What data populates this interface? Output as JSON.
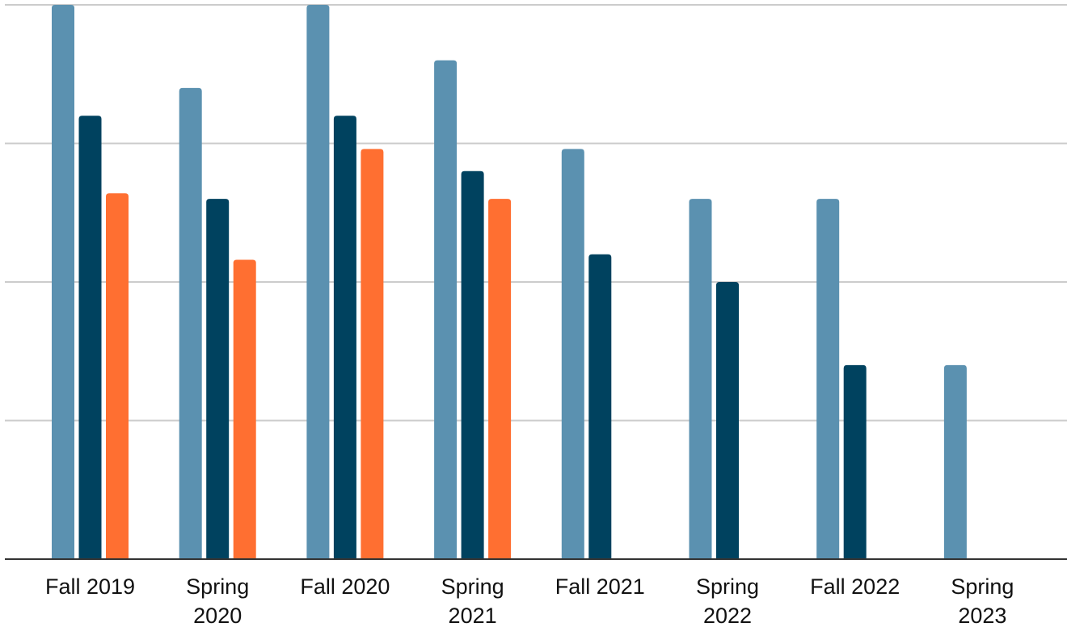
{
  "chart_data": {
    "type": "bar",
    "title": "",
    "xlabel": "",
    "ylabel": "",
    "ylim": [
      0,
      100
    ],
    "grid": true,
    "legend": "none",
    "categories": [
      [
        "Fall 2019"
      ],
      [
        "Spring",
        "2020"
      ],
      [
        "Fall 2020"
      ],
      [
        "Spring",
        "2021"
      ],
      [
        "Fall 2021"
      ],
      [
        "Spring",
        "2022"
      ],
      [
        "Fall 2022"
      ],
      [
        "Spring",
        "2023"
      ]
    ],
    "series": [
      {
        "values": [
          100,
          85,
          100,
          90,
          74,
          65,
          65,
          35
        ],
        "color": "#5b91b0"
      },
      {
        "values": [
          80,
          65,
          80,
          70,
          55,
          50,
          35,
          null
        ],
        "color": "#00425f"
      },
      {
        "values": [
          66,
          54,
          74,
          65,
          null,
          null,
          null,
          null
        ],
        "color": "#ff6f31"
      }
    ]
  }
}
